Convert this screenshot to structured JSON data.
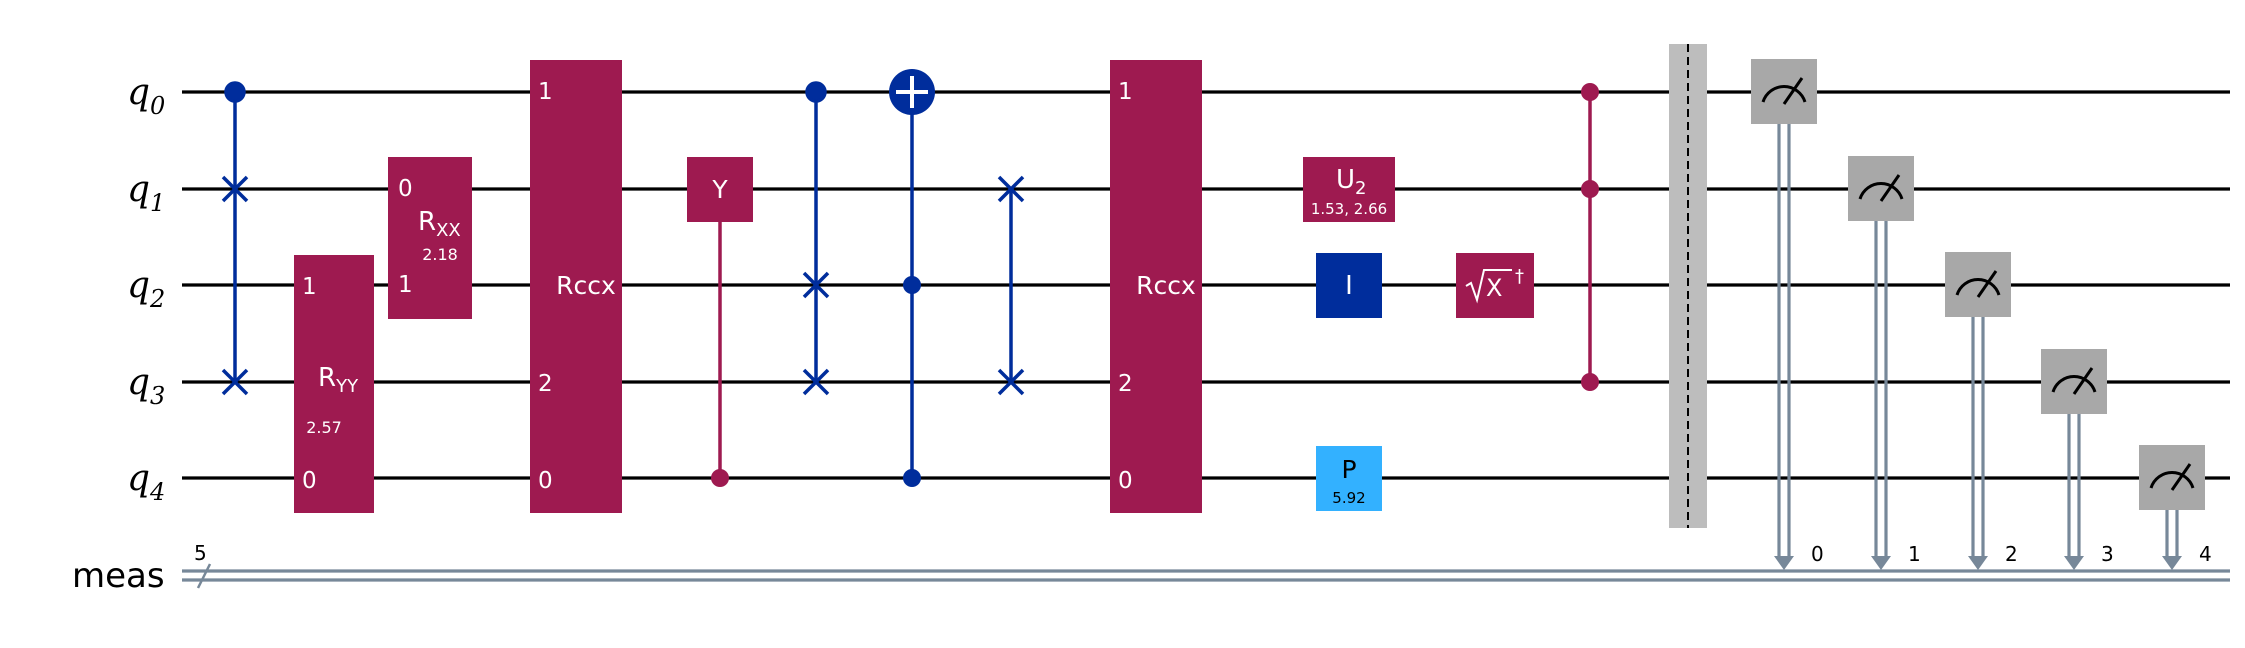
{
  "colors": {
    "magenta": "#9e1a50",
    "dark_blue": "#002d9c",
    "light_blue": "#33b1ff",
    "gray": "#a8a8a8",
    "classical": "#778899",
    "barrier": "#bdbdbd"
  },
  "qubits": [
    {
      "name": "q",
      "sub": "0"
    },
    {
      "name": "q",
      "sub": "1"
    },
    {
      "name": "q",
      "sub": "2"
    },
    {
      "name": "q",
      "sub": "3"
    },
    {
      "name": "q",
      "sub": "4"
    }
  ],
  "classical": {
    "label": "meas",
    "size": "5"
  },
  "gates": {
    "ryy": {
      "name": "R",
      "sub": "YY",
      "param": "2.57",
      "l_top": "1",
      "l_bot": "0"
    },
    "rxx": {
      "name": "R",
      "sub": "XX",
      "param": "2.18",
      "l_top": "0",
      "l_bot": "1"
    },
    "rccx1": {
      "name": "Rccx",
      "l0": "1",
      "l1": "2",
      "l2": "0"
    },
    "y": {
      "name": "Y"
    },
    "rccx2": {
      "name": "Rccx",
      "l0": "1",
      "l1": "2",
      "l2": "0"
    },
    "u2": {
      "name": "U",
      "sub": "2",
      "param": "1.53, 2.66"
    },
    "i": {
      "name": "I"
    },
    "sxdg": {
      "name": "X",
      "dagger": "†"
    },
    "p": {
      "name": "P",
      "param": "5.92"
    }
  },
  "measure_bits": [
    "0",
    "1",
    "2",
    "3",
    "4"
  ]
}
